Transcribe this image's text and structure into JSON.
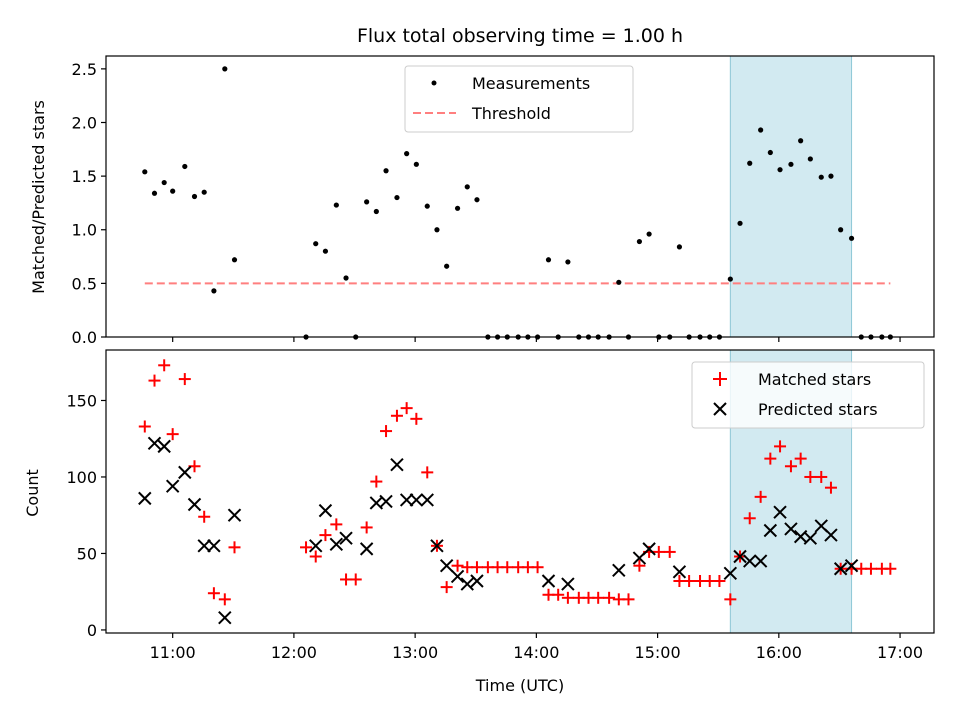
{
  "chart_data": [
    {
      "type": "scatter",
      "title": "Flux total observing time = 1.00 h",
      "ylabel": "Matched/Predicted stars",
      "ylim": [
        0,
        2.62
      ],
      "yticks": [
        {
          "v": 0.0,
          "label": "0.0"
        },
        {
          "v": 0.5,
          "label": "0.5"
        },
        {
          "v": 1.0,
          "label": "1.0"
        },
        {
          "v": 1.5,
          "label": "1.5"
        },
        {
          "v": 2.0,
          "label": "2.0"
        },
        {
          "v": 2.5,
          "label": "2.5"
        }
      ],
      "legend": "upper-center",
      "shaded_region": {
        "x0": 15.6,
        "x1": 16.6,
        "color": "#add8e6"
      },
      "threshold": {
        "name": "Threshold",
        "value": 0.5,
        "x_range": [
          10.77,
          16.92
        ],
        "color": "#ff7f7f"
      },
      "series": [
        {
          "name": "Measurements",
          "marker": "dot",
          "color": "#000000",
          "points": [
            [
              10.77,
              1.54
            ],
            [
              10.85,
              1.34
            ],
            [
              10.93,
              1.44
            ],
            [
              11.0,
              1.36
            ],
            [
              11.1,
              1.59
            ],
            [
              11.18,
              1.31
            ],
            [
              11.26,
              1.35
            ],
            [
              11.34,
              0.43
            ],
            [
              11.43,
              2.5
            ],
            [
              11.51,
              0.72
            ],
            [
              12.1,
              0.0
            ],
            [
              12.18,
              0.87
            ],
            [
              12.26,
              0.8
            ],
            [
              12.35,
              1.23
            ],
            [
              12.43,
              0.55
            ],
            [
              12.51,
              0.0
            ],
            [
              12.6,
              1.26
            ],
            [
              12.68,
              1.17
            ],
            [
              12.76,
              1.55
            ],
            [
              12.85,
              1.3
            ],
            [
              12.93,
              1.71
            ],
            [
              13.01,
              1.61
            ],
            [
              13.1,
              1.22
            ],
            [
              13.18,
              1.0
            ],
            [
              13.26,
              0.66
            ],
            [
              13.35,
              1.2
            ],
            [
              13.43,
              1.4
            ],
            [
              13.51,
              1.28
            ],
            [
              13.6,
              0.0
            ],
            [
              13.68,
              0.0
            ],
            [
              13.76,
              0.0
            ],
            [
              13.85,
              0.0
            ],
            [
              13.93,
              0.0
            ],
            [
              14.01,
              0.0
            ],
            [
              14.1,
              0.72
            ],
            [
              14.18,
              0.0
            ],
            [
              14.26,
              0.7
            ],
            [
              14.35,
              0.0
            ],
            [
              14.43,
              0.0
            ],
            [
              14.51,
              0.0
            ],
            [
              14.6,
              0.0
            ],
            [
              14.68,
              0.51
            ],
            [
              14.76,
              0.0
            ],
            [
              14.85,
              0.89
            ],
            [
              14.93,
              0.96
            ],
            [
              15.01,
              0.0
            ],
            [
              15.1,
              0.0
            ],
            [
              15.18,
              0.84
            ],
            [
              15.26,
              0.0
            ],
            [
              15.35,
              0.0
            ],
            [
              15.43,
              0.0
            ],
            [
              15.51,
              0.0
            ],
            [
              15.6,
              0.54
            ],
            [
              15.68,
              1.06
            ],
            [
              15.76,
              1.62
            ],
            [
              15.85,
              1.93
            ],
            [
              15.93,
              1.72
            ],
            [
              16.01,
              1.56
            ],
            [
              16.1,
              1.61
            ],
            [
              16.18,
              1.83
            ],
            [
              16.26,
              1.66
            ],
            [
              16.35,
              1.49
            ],
            [
              16.43,
              1.5
            ],
            [
              16.51,
              1.0
            ],
            [
              16.6,
              0.92
            ],
            [
              16.68,
              0.0
            ],
            [
              16.76,
              0.0
            ],
            [
              16.85,
              0.0
            ],
            [
              16.92,
              0.0
            ]
          ]
        }
      ]
    },
    {
      "type": "scatter",
      "xlabel": "Time (UTC)",
      "ylabel": "Count",
      "xlim": [
        10.45,
        17.28
      ],
      "ylim": [
        -2,
        183
      ],
      "xticks": [
        {
          "v": 11,
          "label": "11:00"
        },
        {
          "v": 12,
          "label": "12:00"
        },
        {
          "v": 13,
          "label": "13:00"
        },
        {
          "v": 14,
          "label": "14:00"
        },
        {
          "v": 15,
          "label": "15:00"
        },
        {
          "v": 16,
          "label": "16:00"
        },
        {
          "v": 17,
          "label": "17:00"
        }
      ],
      "yticks": [
        {
          "v": 0,
          "label": "0"
        },
        {
          "v": 50,
          "label": "50"
        },
        {
          "v": 100,
          "label": "100"
        },
        {
          "v": 150,
          "label": "150"
        }
      ],
      "legend": "upper-right",
      "shaded_region": {
        "x0": 15.6,
        "x1": 16.6,
        "color": "#add8e6"
      },
      "series": [
        {
          "name": "Matched stars",
          "marker": "plus",
          "color": "#ff0000",
          "points": [
            [
              10.77,
              133
            ],
            [
              10.85,
              163
            ],
            [
              10.93,
              173
            ],
            [
              11.0,
              128
            ],
            [
              11.1,
              164
            ],
            [
              11.18,
              107
            ],
            [
              11.26,
              74
            ],
            [
              11.34,
              24
            ],
            [
              11.43,
              20
            ],
            [
              11.51,
              54
            ],
            [
              12.1,
              54
            ],
            [
              12.18,
              48
            ],
            [
              12.26,
              62
            ],
            [
              12.35,
              69
            ],
            [
              12.43,
              33
            ],
            [
              12.51,
              33
            ],
            [
              12.6,
              67
            ],
            [
              12.68,
              97
            ],
            [
              12.76,
              130
            ],
            [
              12.85,
              140
            ],
            [
              12.93,
              145
            ],
            [
              13.01,
              138
            ],
            [
              13.1,
              103
            ],
            [
              13.18,
              55
            ],
            [
              13.26,
              28
            ],
            [
              13.35,
              42
            ],
            [
              13.43,
              41
            ],
            [
              13.51,
              41
            ],
            [
              13.6,
              41
            ],
            [
              13.68,
              41
            ],
            [
              13.76,
              41
            ],
            [
              13.85,
              41
            ],
            [
              13.93,
              41
            ],
            [
              14.01,
              41
            ],
            [
              14.1,
              23
            ],
            [
              14.18,
              23
            ],
            [
              14.26,
              21
            ],
            [
              14.35,
              21
            ],
            [
              14.43,
              21
            ],
            [
              14.51,
              21
            ],
            [
              14.6,
              21
            ],
            [
              14.68,
              20
            ],
            [
              14.76,
              20
            ],
            [
              14.85,
              42
            ],
            [
              14.93,
              51
            ],
            [
              15.01,
              51
            ],
            [
              15.1,
              51
            ],
            [
              15.18,
              32
            ],
            [
              15.26,
              32
            ],
            [
              15.35,
              32
            ],
            [
              15.43,
              32
            ],
            [
              15.51,
              32
            ],
            [
              15.6,
              20
            ],
            [
              15.68,
              48
            ],
            [
              15.76,
              73
            ],
            [
              15.85,
              87
            ],
            [
              15.93,
              112
            ],
            [
              16.01,
              120
            ],
            [
              16.1,
              107
            ],
            [
              16.18,
              112
            ],
            [
              16.26,
              100
            ],
            [
              16.35,
              100
            ],
            [
              16.43,
              93
            ],
            [
              16.51,
              40
            ],
            [
              16.6,
              40
            ],
            [
              16.68,
              40
            ],
            [
              16.76,
              40
            ],
            [
              16.85,
              40
            ],
            [
              16.92,
              40
            ]
          ]
        },
        {
          "name": "Predicted stars",
          "marker": "x",
          "color": "#000000",
          "points": [
            [
              10.77,
              86
            ],
            [
              10.85,
              122
            ],
            [
              10.93,
              120
            ],
            [
              11.0,
              94
            ],
            [
              11.1,
              103
            ],
            [
              11.18,
              82
            ],
            [
              11.26,
              55
            ],
            [
              11.34,
              55
            ],
            [
              11.43,
              8
            ],
            [
              11.51,
              75
            ],
            [
              12.18,
              55
            ],
            [
              12.26,
              78
            ],
            [
              12.35,
              56
            ],
            [
              12.43,
              60
            ],
            [
              12.6,
              53
            ],
            [
              12.68,
              83
            ],
            [
              12.76,
              84
            ],
            [
              12.85,
              108
            ],
            [
              12.93,
              85
            ],
            [
              13.01,
              85
            ],
            [
              13.1,
              85
            ],
            [
              13.18,
              55
            ],
            [
              13.26,
              42
            ],
            [
              13.35,
              35
            ],
            [
              13.43,
              30
            ],
            [
              13.51,
              32
            ],
            [
              14.1,
              32
            ],
            [
              14.26,
              30
            ],
            [
              14.68,
              39
            ],
            [
              14.85,
              47
            ],
            [
              14.93,
              53
            ],
            [
              15.18,
              38
            ],
            [
              15.6,
              37
            ],
            [
              15.68,
              48
            ],
            [
              15.76,
              45
            ],
            [
              15.85,
              45
            ],
            [
              15.93,
              65
            ],
            [
              16.01,
              77
            ],
            [
              16.1,
              66
            ],
            [
              16.18,
              61
            ],
            [
              16.26,
              60
            ],
            [
              16.35,
              68
            ],
            [
              16.43,
              62
            ],
            [
              16.51,
              40
            ],
            [
              16.6,
              42
            ]
          ]
        }
      ]
    }
  ]
}
